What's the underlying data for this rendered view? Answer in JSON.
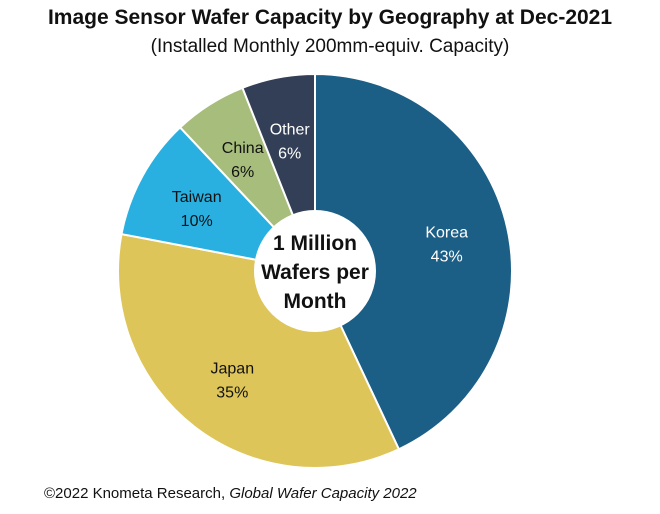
{
  "header": {
    "title": "Image Sensor Wafer Capacity by Geography at Dec-2021",
    "subtitle": "(Installed Monthly 200mm-equiv. Capacity)"
  },
  "chart_data": {
    "type": "pie",
    "variant": "donut",
    "title": "Image Sensor Wafer Capacity by Geography at Dec-2021",
    "subtitle": "(Installed Monthly 200mm-equiv. Capacity)",
    "center_label": [
      "1 Million",
      "Wafers per",
      "Month"
    ],
    "slices": [
      {
        "label": "Korea",
        "value": 43,
        "value_label": "43%",
        "color": "#1b5e86",
        "text_color": "#ffffff"
      },
      {
        "label": "Japan",
        "value": 35,
        "value_label": "35%",
        "color": "#dec55a",
        "text_color": "#111111"
      },
      {
        "label": "Taiwan",
        "value": 10,
        "value_label": "10%",
        "color": "#29b0e0",
        "text_color": "#111111"
      },
      {
        "label": "China",
        "value": 6,
        "value_label": "6%",
        "color": "#a7bd7c",
        "text_color": "#111111"
      },
      {
        "label": "Other",
        "value": 6,
        "value_label": "6%",
        "color": "#333f56",
        "text_color": "#ffffff"
      }
    ],
    "start": "12 o'clock",
    "direction": "clockwise",
    "legend": "none"
  },
  "footer": {
    "credit_prefix": "©2022 Knometa Research, ",
    "credit_source": "Global Wafer Capacity 2022"
  }
}
